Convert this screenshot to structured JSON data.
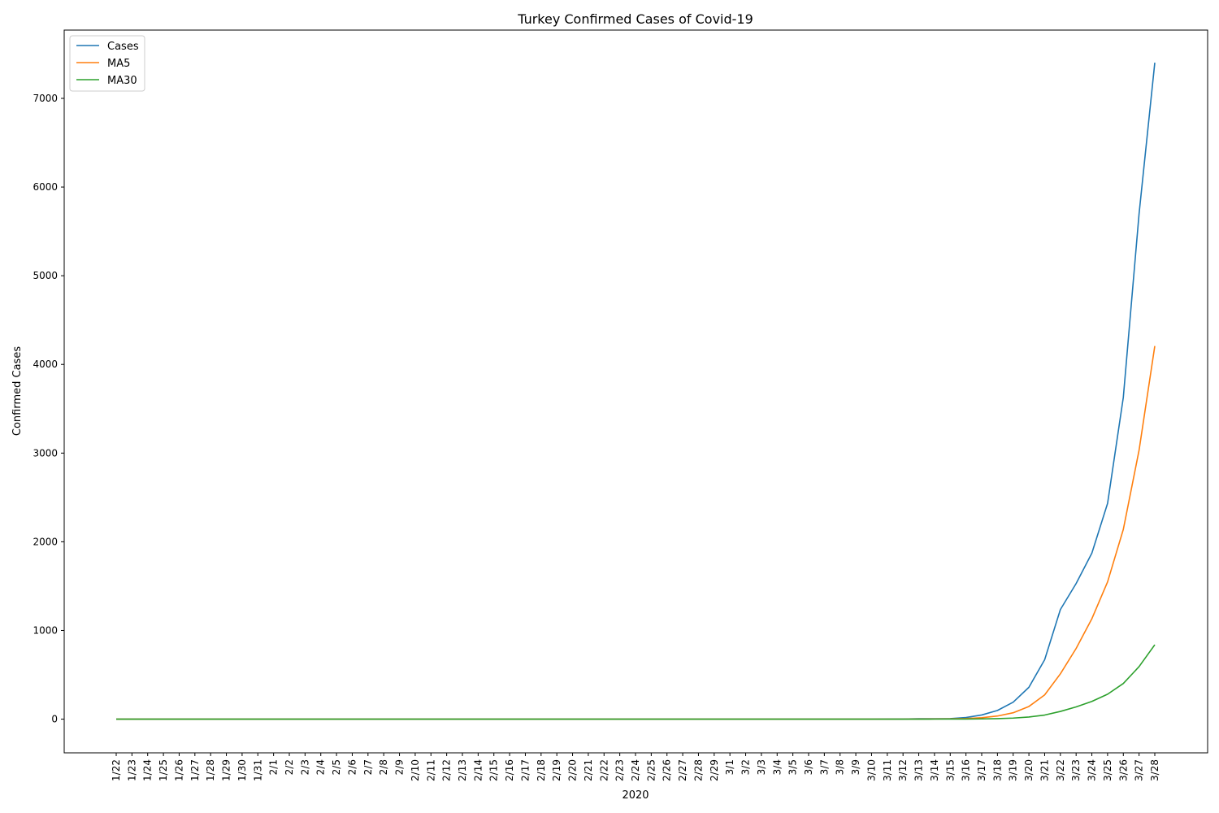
{
  "chart_data": {
    "type": "line",
    "title": "Turkey Confirmed Cases of Covid-19",
    "xlabel": "2020",
    "ylabel": "Confirmed Cases",
    "ylim": [
      -380,
      7770
    ],
    "yticks": [
      0,
      1000,
      2000,
      3000,
      4000,
      5000,
      6000,
      7000
    ],
    "grid": false,
    "legend_position": "top-left",
    "x": [
      "1/22",
      "1/23",
      "1/24",
      "1/25",
      "1/26",
      "1/27",
      "1/28",
      "1/29",
      "1/30",
      "1/31",
      "2/1",
      "2/2",
      "2/3",
      "2/4",
      "2/5",
      "2/6",
      "2/7",
      "2/8",
      "2/9",
      "2/10",
      "2/11",
      "2/12",
      "2/13",
      "2/14",
      "2/15",
      "2/16",
      "2/17",
      "2/18",
      "2/19",
      "2/20",
      "2/21",
      "2/22",
      "2/23",
      "2/24",
      "2/25",
      "2/26",
      "2/27",
      "2/28",
      "2/29",
      "3/1",
      "3/2",
      "3/3",
      "3/4",
      "3/5",
      "3/6",
      "3/7",
      "3/8",
      "3/9",
      "3/10",
      "3/11",
      "3/12",
      "3/13",
      "3/14",
      "3/15",
      "3/16",
      "3/17",
      "3/18",
      "3/19",
      "3/20",
      "3/21",
      "3/22",
      "3/23",
      "3/24",
      "3/25",
      "3/26",
      "3/27",
      "3/28"
    ],
    "series": [
      {
        "name": "Cases",
        "color": "#1f77b4",
        "values": [
          0,
          0,
          0,
          0,
          0,
          0,
          0,
          0,
          0,
          0,
          0,
          0,
          0,
          0,
          0,
          0,
          0,
          0,
          0,
          0,
          0,
          0,
          0,
          0,
          0,
          0,
          0,
          0,
          0,
          0,
          0,
          0,
          0,
          0,
          0,
          0,
          0,
          0,
          0,
          0,
          0,
          0,
          0,
          0,
          0,
          0,
          0,
          0,
          0,
          1,
          1,
          5,
          5,
          6,
          18,
          47,
          98,
          191,
          359,
          670,
          1236,
          1529,
          1872,
          2433,
          3629,
          5698,
          7402
        ]
      },
      {
        "name": "MA5",
        "color": "#ff7f0e",
        "values": [
          0,
          0,
          0,
          0,
          0,
          0,
          0,
          0,
          0,
          0,
          0,
          0,
          0,
          0,
          0,
          0,
          0,
          0,
          0,
          0,
          0,
          0,
          0,
          0,
          0,
          0,
          0,
          0,
          0,
          0,
          0,
          0,
          0,
          0,
          0,
          0,
          0,
          0,
          0,
          0,
          0,
          0,
          0,
          0,
          0,
          0,
          0,
          0,
          0,
          0.2,
          0.4,
          1.4,
          2.4,
          3.6,
          7,
          16,
          35,
          72,
          143,
          273,
          511,
          797,
          1132,
          1548,
          2140,
          3032,
          4207
        ]
      },
      {
        "name": "MA30",
        "color": "#2ca02c",
        "values": [
          0,
          0,
          0,
          0,
          0,
          0,
          0,
          0,
          0,
          0,
          0,
          0,
          0,
          0,
          0,
          0,
          0,
          0,
          0,
          0,
          0,
          0,
          0,
          0,
          0,
          0,
          0,
          0,
          0,
          0,
          0,
          0,
          0,
          0,
          0,
          0,
          0,
          0,
          0,
          0,
          0,
          0,
          0,
          0,
          0,
          0,
          0,
          0,
          0,
          0.03,
          0.07,
          0.2,
          0.4,
          0.6,
          1.2,
          2.8,
          6,
          12,
          24,
          46,
          87,
          138,
          200,
          281,
          402,
          592,
          839
        ]
      }
    ]
  }
}
